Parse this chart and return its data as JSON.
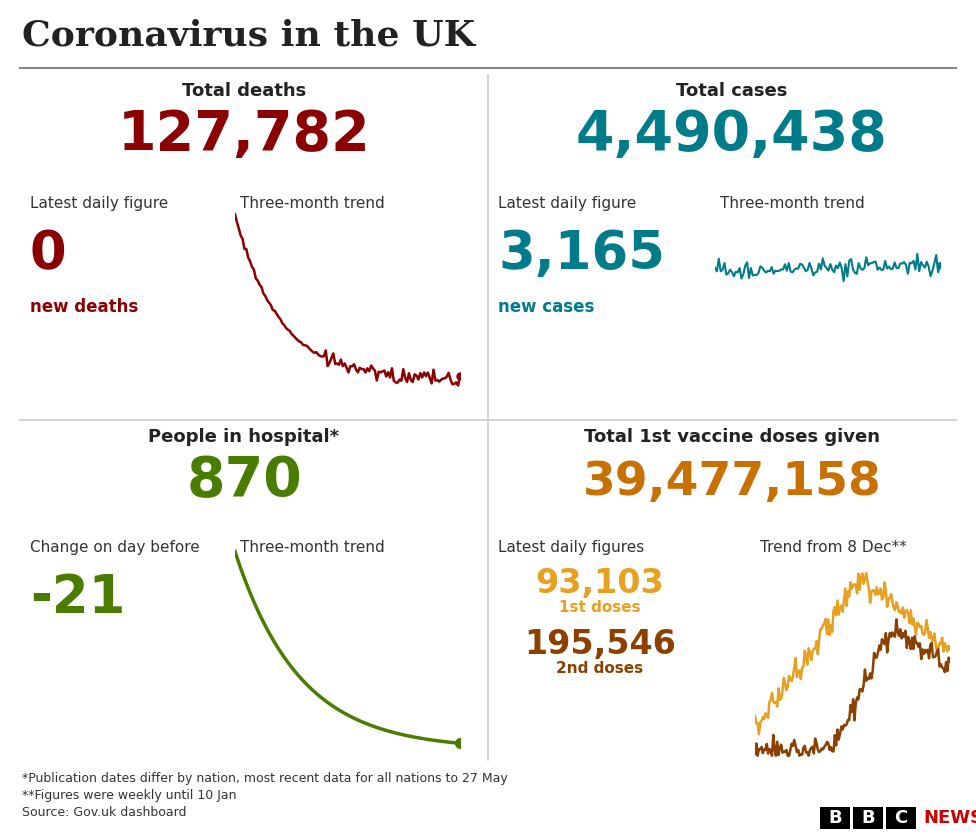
{
  "title": "Coronavirus in the UK",
  "bg_color": "#ffffff",
  "title_color": "#222222",
  "total_deaths_label": "Total deaths",
  "total_deaths_value": "127,782",
  "total_deaths_color": "#8b0000",
  "deaths_daily_label": "Latest daily figure",
  "deaths_trend_label": "Three-month trend",
  "deaths_daily_value": "0",
  "deaths_daily_sublabel": "new deaths",
  "total_cases_label": "Total cases",
  "total_cases_value": "4,490,438",
  "total_cases_color": "#007b8a",
  "cases_daily_label": "Latest daily figure",
  "cases_trend_label": "Three-month trend",
  "cases_daily_value": "3,165",
  "cases_daily_sublabel": "new cases",
  "hospital_label": "People in hospital*",
  "hospital_value": "870",
  "hospital_color": "#4a7c00",
  "hospital_change_label": "Change on day before",
  "hospital_trend_label": "Three-month trend",
  "hospital_change_value": "-21",
  "vaccine_label": "Total 1st vaccine doses given",
  "vaccine_value": "39,477,158",
  "vaccine_color": "#c87000",
  "vaccine_daily_label": "Latest daily figures",
  "vaccine_trend_label": "Trend from 8 Dec**",
  "vaccine_1st_value": "93,103",
  "vaccine_1st_sublabel": "1st doses",
  "vaccine_1st_color": "#e8a020",
  "vaccine_2nd_value": "195,546",
  "vaccine_2nd_sublabel": "2nd doses",
  "vaccine_2nd_color": "#8b4000",
  "footnote1": "*Publication dates differ by nation, most recent data for all nations to 27 May",
  "footnote2": "**Figures were weekly until 10 Jan",
  "footnote3": "Source: Gov.uk dashboard"
}
